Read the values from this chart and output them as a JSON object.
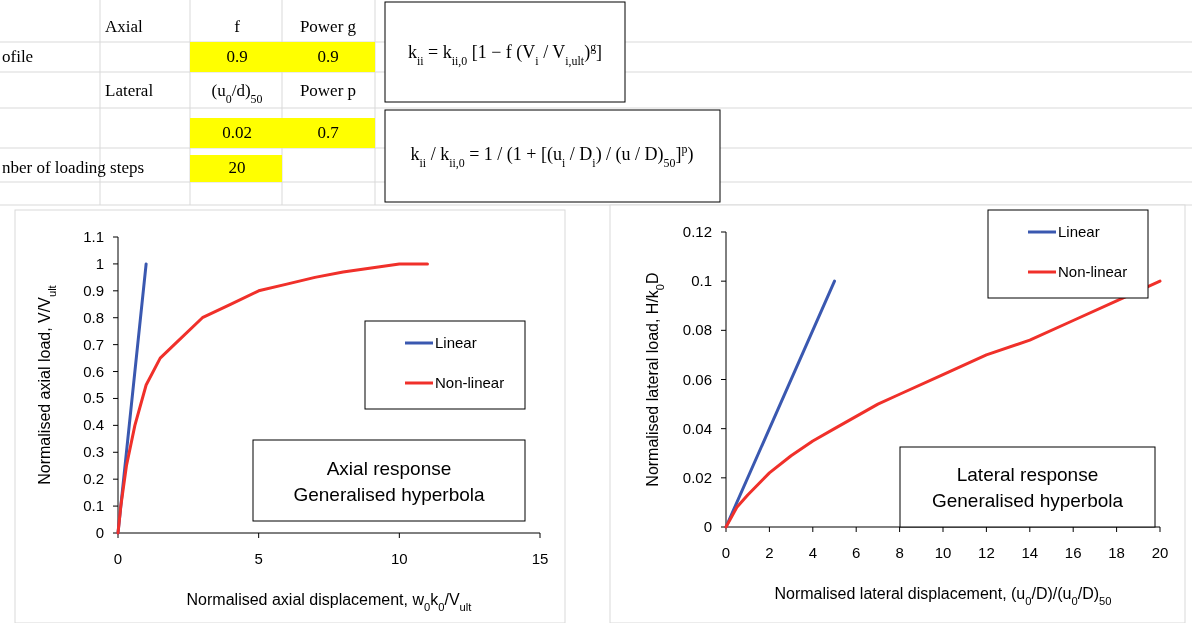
{
  "chart_data": [
    {
      "type": "other",
      "annotations": [
        "Axial",
        "f",
        "Power g",
        "ofile",
        "0.9",
        "0.9",
        "Lateral",
        "(u$_{0}$/d)$_{50}$",
        "Power p",
        "0.02",
        "0.7",
        "nber of loading steps",
        "20",
        "k$_{ii}$ = k$_{ii,0}$ [1 − f (V$_{i}$ / V$_{i,ult}$)$^{g}$]",
        "k$_{ii}$ / k$_{ii,0}$ = 1 / (1 + [(u$_{i}$ / D$_{i}$) / (u / D)$_{50}$]$^{p}$)"
      ]
    },
    {
      "type": "line",
      "xlabel": "Normalised axial displacement, w$_{0}$k$_{0}$/V$_{ult}$",
      "ylabel": "Normalised axial load, V/V$_{ult}$",
      "xlim": [
        0,
        15
      ],
      "xticks": [
        0,
        5,
        10,
        15
      ],
      "ylim": [
        0,
        1.1
      ],
      "yticks": [
        0,
        0.1,
        0.2,
        0.3,
        0.4,
        0.5,
        0.6,
        0.7,
        0.8,
        0.9,
        1,
        1.1
      ],
      "legend": "right",
      "annotations": [
        "Axial response\nGeneralised hyperbola"
      ],
      "series": [
        {
          "name": "Linear",
          "color": "#3a58b0",
          "x": [
            0,
            1
          ],
          "values": [
            0,
            1
          ]
        },
        {
          "name": "Non-linear",
          "color": "#f0302a",
          "x": [
            0,
            0.1,
            0.3,
            0.6,
            1,
            1.5,
            2,
            3,
            4,
            5,
            6,
            7,
            8,
            9,
            10,
            11
          ],
          "values": [
            0,
            0.1,
            0.25,
            0.4,
            0.55,
            0.65,
            0.7,
            0.8,
            0.85,
            0.9,
            0.925,
            0.95,
            0.97,
            0.985,
            1,
            1
          ]
        }
      ]
    },
    {
      "type": "line",
      "xlabel": "Normalised lateral displacement, (u$_{0}$/D)/(u$_{0}$/D)$_{50}$",
      "ylabel": "Normalised lateral load, H/k$_{0}$D",
      "xlim": [
        0,
        20
      ],
      "xticks": [
        0,
        2,
        4,
        6,
        8,
        10,
        12,
        14,
        16,
        18,
        20
      ],
      "ylim": [
        0,
        0.12
      ],
      "yticks": [
        0,
        0.02,
        0.04,
        0.06,
        0.08,
        0.1,
        0.12
      ],
      "legend": "top right",
      "annotations": [
        "Lateral response\nGeneralised hyperbola"
      ],
      "series": [
        {
          "name": "Linear",
          "color": "#3a58b0",
          "x": [
            0,
            5
          ],
          "values": [
            0,
            0.1
          ]
        },
        {
          "name": "Non-linear",
          "color": "#f0302a",
          "x": [
            0,
            0.5,
            1,
            2,
            3,
            4,
            5,
            6,
            7,
            8,
            10,
            12,
            14,
            16,
            18,
            20
          ],
          "values": [
            0,
            0.008,
            0.013,
            0.022,
            0.029,
            0.035,
            0.04,
            0.045,
            0.05,
            0.054,
            0.062,
            0.07,
            0.076,
            0.084,
            0.092,
            0.1
          ]
        }
      ]
    }
  ]
}
